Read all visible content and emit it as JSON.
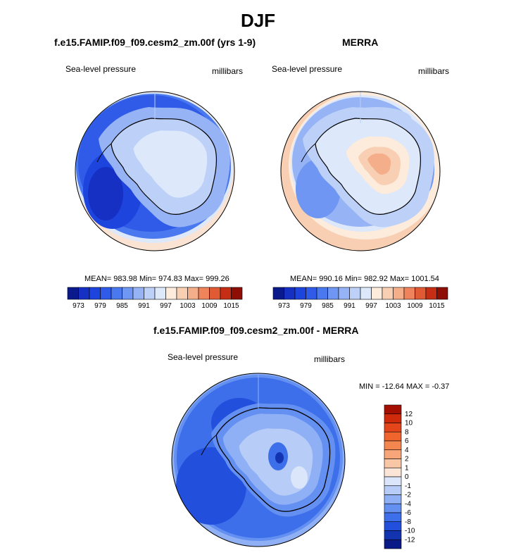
{
  "figure": {
    "title": "DJF"
  },
  "panels": {
    "model": {
      "title": "f.e15.FAMIP.f09_f09.cesm2_zm.00f (yrs 1-9)",
      "left_label": "Sea-level pressure",
      "right_label": "millibars",
      "stats": "MEAN= 983.98  Min= 974.83  Max= 999.26"
    },
    "obs": {
      "title": "MERRA",
      "left_label": "Sea-level pressure",
      "right_label": "millibars",
      "stats": "MEAN= 990.16  Min= 982.92  Max= 1001.54"
    },
    "diff": {
      "title": "f.e15.FAMIP.f09_f09.cesm2_zm.00f - MERRA",
      "left_label": "Sea-level pressure",
      "right_label": "millibars",
      "stats": "MIN = -12.64 MAX =  -0.37"
    }
  },
  "chart_data": [
    {
      "type": "heatmap",
      "title": "f.e15.FAMIP.f09_f09.cesm2_zm.00f (yrs 1-9)",
      "projection": "south polar stereographic",
      "variable": "Sea-level pressure",
      "units": "millibars",
      "mean": 983.98,
      "min": 974.83,
      "max": 999.26,
      "colorbar_ticks": [
        "973",
        "979",
        "985",
        "991",
        "997",
        "1003",
        "1009",
        "1015"
      ],
      "colorbar_colors": [
        "#0a1a8c",
        "#1530c2",
        "#1e44de",
        "#2f5be8",
        "#4a78ee",
        "#6e96f2",
        "#96b4f5",
        "#bcd0f8",
        "#dde8fb",
        "#fdebdc",
        "#f8cfb2",
        "#f4ae89",
        "#ee835c",
        "#e05a34",
        "#c52e14",
        "#8e0d04"
      ],
      "bands": [
        {
          "level": 973,
          "color": "#0a1a8c"
        },
        {
          "level": 976,
          "color": "#1530c2"
        },
        {
          "level": 979,
          "color": "#1e44de"
        },
        {
          "level": 982,
          "color": "#2f5be8"
        },
        {
          "level": 985,
          "color": "#4a78ee"
        },
        {
          "level": 988,
          "color": "#6e96f2"
        },
        {
          "level": 991,
          "color": "#96b4f5"
        },
        {
          "level": 994,
          "color": "#bcd0f8"
        },
        {
          "level": 997,
          "color": "#dde8fb"
        },
        {
          "level": 1000,
          "color": "#fdebdc"
        }
      ]
    },
    {
      "type": "heatmap",
      "title": "MERRA",
      "projection": "south polar stereographic",
      "variable": "Sea-level pressure",
      "units": "millibars",
      "mean": 990.16,
      "min": 982.92,
      "max": 1001.54,
      "colorbar_ticks": [
        "973",
        "979",
        "985",
        "991",
        "997",
        "1003",
        "1009",
        "1015"
      ],
      "colorbar_colors": [
        "#0a1a8c",
        "#1530c2",
        "#1e44de",
        "#2f5be8",
        "#4a78ee",
        "#6e96f2",
        "#96b4f5",
        "#bcd0f8",
        "#dde8fb",
        "#fdebdc",
        "#f8cfb2",
        "#f4ae89",
        "#ee835c",
        "#e05a34",
        "#c52e14",
        "#8e0d04"
      ]
    },
    {
      "type": "heatmap",
      "title": "f.e15.FAMIP.f09_f09.cesm2_zm.00f - MERRA",
      "projection": "south polar stereographic",
      "variable": "Sea-level pressure",
      "units": "millibars",
      "min": -12.64,
      "max": -0.37,
      "colorbar_orientation": "vertical",
      "colorbar_ticks": [
        "12",
        "10",
        "8",
        "6",
        "4",
        "2",
        "1",
        "0",
        "-1",
        "-2",
        "-4",
        "-6",
        "-8",
        "-10",
        "-12"
      ],
      "colorbar_colors": [
        "#a50f02",
        "#cf2a0c",
        "#e5451a",
        "#f0652d",
        "#f48650",
        "#f7a579",
        "#f9c6a6",
        "#fbe5d6",
        "#dbe6fb",
        "#b7cdf8",
        "#8fb0f5",
        "#6490f1",
        "#3e6fea",
        "#2250dc",
        "#1234b0",
        "#091a86"
      ]
    }
  ]
}
